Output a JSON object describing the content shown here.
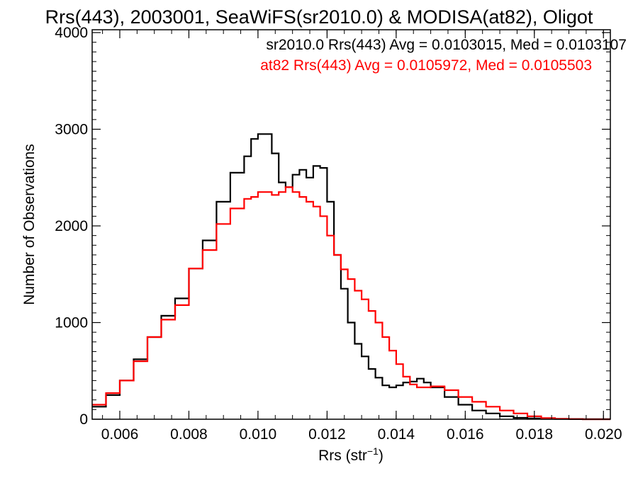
{
  "chart_data": {
    "type": "line",
    "title": "Rrs(443), 2003001, SeaWiFS(sr2010.0) & MODISA(at82), Oligot",
    "xlabel_main": "Rrs (str",
    "xlabel_sup": "−1",
    "xlabel_tail": ")",
    "ylabel": "Number of Observations",
    "xlim": [
      0.0052,
      0.0202
    ],
    "ylim": [
      0,
      4000
    ],
    "x_ticks": [
      "0.006",
      "0.008",
      "0.010",
      "0.012",
      "0.014",
      "0.016",
      "0.018",
      "0.020"
    ],
    "y_ticks": [
      "0",
      "1000",
      "2000",
      "3000",
      "4000"
    ],
    "grid": false,
    "legend_position": "top-right",
    "series": [
      {
        "name": "sr2010.0",
        "legend": "sr2010.0 Rrs(443) Avg = 0.0103015, Med = 0.0103107",
        "color": "#000000",
        "x": [
          0.0052,
          0.0056,
          0.006,
          0.0064,
          0.0068,
          0.0072,
          0.0076,
          0.008,
          0.0084,
          0.0088,
          0.0092,
          0.0096,
          0.0098,
          0.01,
          0.0102,
          0.0104,
          0.0106,
          0.0108,
          0.011,
          0.0112,
          0.0114,
          0.0116,
          0.0118,
          0.012,
          0.0122,
          0.0124,
          0.0126,
          0.0128,
          0.013,
          0.0132,
          0.0134,
          0.0136,
          0.0138,
          0.014,
          0.0142,
          0.0144,
          0.0146,
          0.0148,
          0.015,
          0.0154,
          0.0158,
          0.0162,
          0.0166,
          0.017,
          0.0174,
          0.0178,
          0.0182,
          0.0186,
          0.019,
          0.0194,
          0.0198,
          0.0202
        ],
        "y": [
          130,
          250,
          400,
          620,
          850,
          1070,
          1250,
          1560,
          1850,
          2250,
          2550,
          2720,
          2900,
          2950,
          2950,
          2750,
          2450,
          2400,
          2530,
          2580,
          2500,
          2620,
          2600,
          2250,
          1700,
          1350,
          1000,
          780,
          650,
          520,
          430,
          350,
          330,
          350,
          380,
          390,
          420,
          380,
          330,
          230,
          150,
          90,
          60,
          30,
          15,
          8,
          4,
          2,
          1,
          0,
          0,
          0
        ]
      },
      {
        "name": "at82",
        "legend": "at82 Rrs(443) Avg = 0.0105972, Med = 0.0105503",
        "color": "#ff0000",
        "x": [
          0.0052,
          0.0056,
          0.006,
          0.0064,
          0.0068,
          0.0072,
          0.0076,
          0.008,
          0.0084,
          0.0088,
          0.0092,
          0.0096,
          0.0098,
          0.01,
          0.0102,
          0.0104,
          0.0106,
          0.0108,
          0.011,
          0.0112,
          0.0114,
          0.0116,
          0.0118,
          0.012,
          0.0122,
          0.0124,
          0.0126,
          0.0128,
          0.013,
          0.0132,
          0.0134,
          0.0136,
          0.0138,
          0.014,
          0.0142,
          0.0144,
          0.0146,
          0.0148,
          0.015,
          0.0154,
          0.0158,
          0.0162,
          0.0166,
          0.017,
          0.0174,
          0.0178,
          0.0182,
          0.0186,
          0.019,
          0.0194,
          0.0198,
          0.0202
        ],
        "y": [
          150,
          270,
          400,
          600,
          850,
          1030,
          1180,
          1560,
          1750,
          2020,
          2180,
          2280,
          2300,
          2350,
          2350,
          2320,
          2350,
          2400,
          2350,
          2300,
          2250,
          2200,
          2100,
          1900,
          1700,
          1550,
          1450,
          1330,
          1240,
          1120,
          1000,
          850,
          710,
          570,
          440,
          360,
          330,
          330,
          340,
          300,
          230,
          180,
          130,
          90,
          60,
          30,
          12,
          5,
          2,
          0,
          0,
          0
        ]
      }
    ]
  }
}
